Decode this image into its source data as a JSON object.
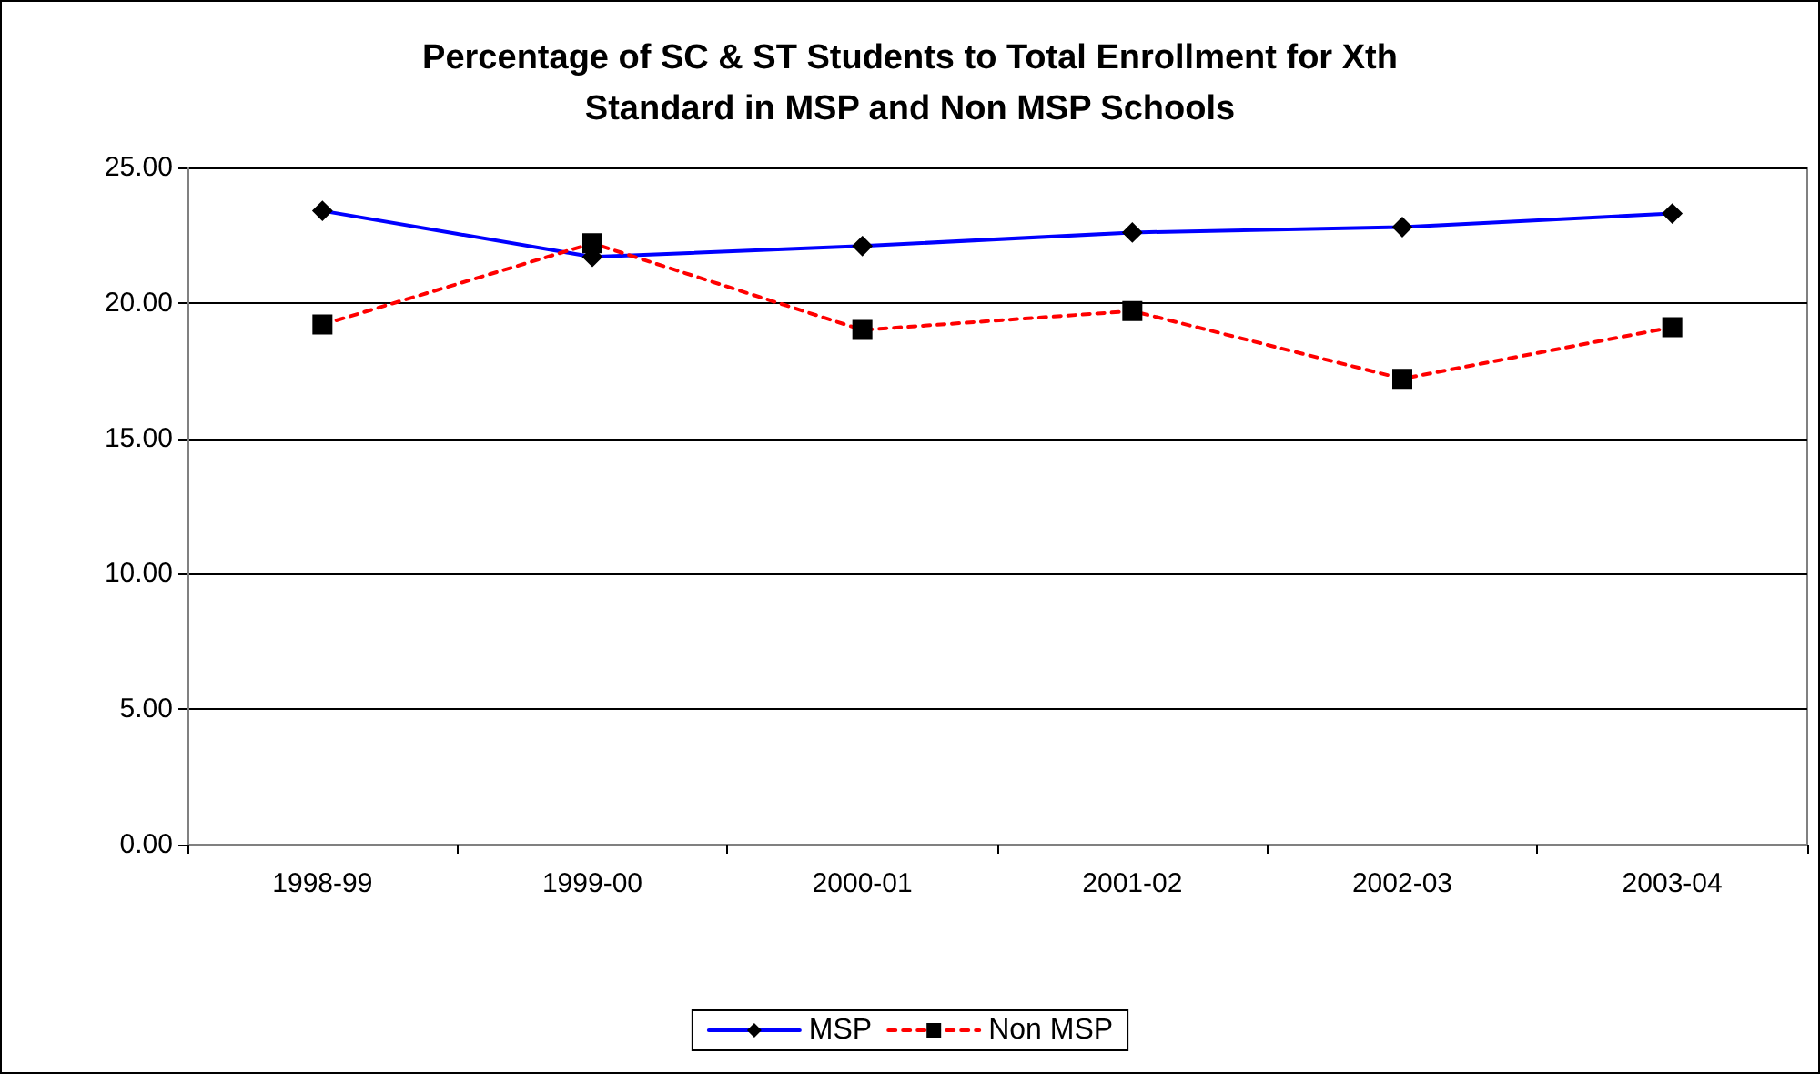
{
  "chart_data": {
    "type": "line",
    "title": "Percentage of SC & ST Students to Total Enrollment for Xth\nStandard in MSP and Non MSP Schools",
    "categories": [
      "1998-99",
      "1999-00",
      "2000-01",
      "2001-02",
      "2002-03",
      "2003-04"
    ],
    "series": [
      {
        "name": "MSP",
        "color": "#0000ff",
        "marker": "diamond",
        "line_style": "solid",
        "values": [
          23.4,
          21.7,
          22.1,
          22.6,
          22.8,
          23.3
        ]
      },
      {
        "name": "Non MSP",
        "color": "#ff0000",
        "marker": "square",
        "line_style": "dashed",
        "values": [
          19.2,
          22.2,
          19.0,
          19.7,
          17.2,
          19.1
        ]
      }
    ],
    "ylim": [
      0,
      25
    ],
    "yticks": [
      {
        "value": 0,
        "label": "0.00"
      },
      {
        "value": 5,
        "label": "5.00"
      },
      {
        "value": 10,
        "label": "10.00"
      },
      {
        "value": 15,
        "label": "15.00"
      },
      {
        "value": 20,
        "label": "20.00"
      },
      {
        "value": 25,
        "label": "25.00"
      }
    ],
    "grid": "y",
    "legend": "bottom"
  }
}
